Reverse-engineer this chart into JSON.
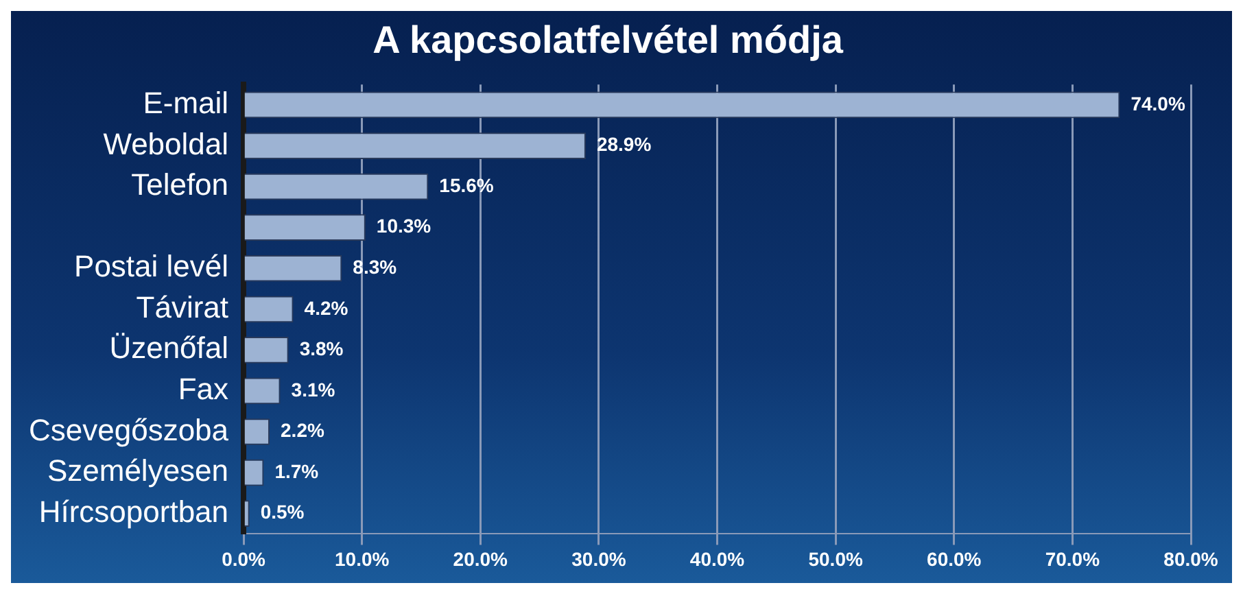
{
  "chart_data": {
    "type": "bar",
    "orientation": "horizontal",
    "title": "A kapcsolatfelvétel módja",
    "categories": [
      "E-mail",
      "Weboldal",
      "Telefon",
      null,
      "Postai levél",
      "Távirat",
      "Üzenőfal",
      "Fax",
      "Csevegőszoba",
      "Személyesen",
      "Hírcsoportban"
    ],
    "values": [
      74.0,
      28.9,
      15.6,
      10.3,
      8.3,
      4.2,
      3.8,
      3.1,
      2.2,
      1.7,
      0.5
    ],
    "value_labels": [
      "74.0%",
      "28.9%",
      "15.6%",
      "10.3%",
      "8.3%",
      "4.2%",
      "3.8%",
      "3.1%",
      "2.2%",
      "1.7%",
      "0.5%"
    ],
    "color": "#9db3d3",
    "xlim": [
      0,
      80
    ],
    "xticks": [
      {
        "value": 0,
        "label": "0.0%"
      },
      {
        "value": 10,
        "label": "10.0%"
      },
      {
        "value": 20,
        "label": "20.0%"
      },
      {
        "value": 30,
        "label": "30.0%"
      },
      {
        "value": 40,
        "label": "40.0%"
      },
      {
        "value": 50,
        "label": "50.0%"
      },
      {
        "value": 60,
        "label": "60.0%"
      },
      {
        "value": 70,
        "label": "70.0%"
      },
      {
        "value": 80,
        "label": "80.0%"
      }
    ],
    "grid": "x",
    "legend": false
  }
}
